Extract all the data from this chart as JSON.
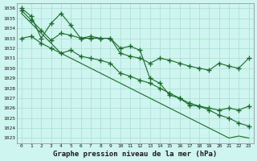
{
  "title": "Graphe pression niveau de la mer (hPa)",
  "bg_color": "#cef5ef",
  "grid_color": "#aaddcc",
  "line_color": "#1a6b2a",
  "x_ticks": [
    0,
    1,
    2,
    3,
    4,
    5,
    6,
    7,
    8,
    9,
    10,
    11,
    12,
    13,
    14,
    15,
    16,
    17,
    18,
    19,
    20,
    21,
    22,
    23
  ],
  "y_ticks": [
    1023,
    1024,
    1025,
    1026,
    1027,
    1028,
    1029,
    1030,
    1031,
    1032,
    1033,
    1034,
    1035,
    1036
  ],
  "ylim": [
    1022.5,
    1036.5
  ],
  "xlim": [
    -0.5,
    23.5
  ],
  "series1": [
    1036.0,
    1035.2,
    1033.0,
    1034.5,
    1035.5,
    1034.3,
    1033.0,
    1033.2,
    1033.0,
    1033.0,
    1032.0,
    1032.2,
    1031.8,
    1029.0,
    1028.5,
    1027.3,
    1027.0,
    1026.3,
    1026.2,
    1026.0,
    1025.8,
    1026.0,
    1025.8,
    1026.2
  ],
  "series2": [
    1033.0,
    1033.2,
    1032.5,
    1032.0,
    1031.5,
    1031.8,
    1031.2,
    1031.0,
    1030.8,
    1030.5,
    1029.5,
    1029.2,
    1028.8,
    1028.5,
    1028.0,
    1027.5,
    1027.0,
    1026.5,
    1026.2,
    1025.8,
    1025.3,
    1025.0,
    1024.5,
    1024.2
  ],
  "series3": [
    1035.5,
    1034.5,
    1033.5,
    1032.5,
    1031.5,
    1031.0,
    1030.5,
    1030.0,
    1029.5,
    1029.0,
    1028.5,
    1028.0,
    1027.5,
    1027.0,
    1026.5,
    1026.0,
    1025.5,
    1025.0,
    1024.5,
    1024.0,
    1023.5,
    1023.0,
    1023.2,
    1023.0
  ],
  "series4": [
    1035.8,
    1034.8,
    1033.8,
    1032.8,
    1033.5,
    1033.3,
    1033.0,
    1033.0,
    1033.0,
    1033.0,
    1031.5,
    1031.2,
    1031.0,
    1030.5,
    1031.0,
    1030.8,
    1030.5,
    1030.2,
    1030.0,
    1029.8,
    1030.5,
    1030.2,
    1030.0,
    1031.0
  ]
}
